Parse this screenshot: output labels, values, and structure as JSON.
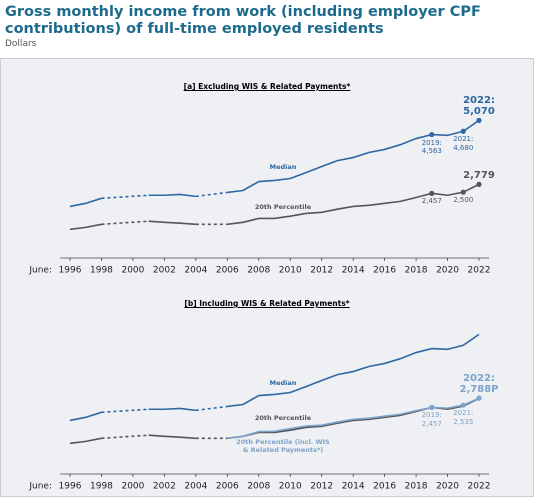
{
  "header": {
    "title": "Gross monthly income from work (including employer CPF contributions) of full-time employed residents",
    "subtitle": "Dollars"
  },
  "chart_data": [
    {
      "type": "line",
      "title": "[a] Excluding WIS & Related Payments*",
      "x_prefix": "June:",
      "x": [
        1996,
        1997,
        1998,
        2001,
        2002,
        2003,
        2004,
        2006,
        2007,
        2008,
        2009,
        2010,
        2011,
        2012,
        2013,
        2014,
        2015,
        2016,
        2017,
        2018,
        2019,
        2020,
        2021,
        2022
      ],
      "xlim": [
        1996,
        2022
      ],
      "xticks": [
        1996,
        1998,
        2000,
        2002,
        2004,
        2006,
        2008,
        2010,
        2012,
        2014,
        2016,
        2018,
        2020,
        2022
      ],
      "ylim": [
        0,
        5800
      ],
      "series": [
        {
          "name": "Median",
          "color": "#2e67a3",
          "values": [
            1990,
            2100,
            2280,
            2390,
            2390,
            2420,
            2350,
            2490,
            2560,
            2880,
            2920,
            2990,
            3200,
            3420,
            3630,
            3740,
            3920,
            4030,
            4200,
            4420,
            4563,
            4534,
            4680,
            5070
          ],
          "value_labels": [
            null,
            null,
            null,
            null,
            null,
            null,
            null,
            null,
            null,
            null,
            null,
            null,
            null,
            null,
            null,
            null,
            null,
            null,
            null,
            null,
            "2019:\n4,563",
            null,
            "2021:\n4,680",
            "2022:\n5,070"
          ]
        },
        {
          "name": "20th Percentile",
          "color": "#555555",
          "values": [
            1170,
            1240,
            1350,
            1460,
            1420,
            1390,
            1350,
            1350,
            1420,
            1560,
            1560,
            1640,
            1740,
            1780,
            1890,
            1990,
            2030,
            2100,
            2170,
            2310,
            2457,
            2390,
            2500,
            2779
          ],
          "value_labels": [
            null,
            null,
            null,
            null,
            null,
            null,
            null,
            null,
            null,
            null,
            null,
            null,
            null,
            null,
            null,
            null,
            null,
            null,
            null,
            null,
            "2,457",
            null,
            "2,500",
            "2,779"
          ]
        }
      ]
    },
    {
      "type": "line",
      "title": "[b] Including WIS & Related Payments*",
      "x_prefix": "June:",
      "x": [
        1996,
        1997,
        1998,
        2001,
        2002,
        2003,
        2004,
        2006,
        2007,
        2008,
        2009,
        2010,
        2011,
        2012,
        2013,
        2014,
        2015,
        2016,
        2017,
        2018,
        2019,
        2020,
        2021,
        2022
      ],
      "xlim": [
        1996,
        2022
      ],
      "xticks": [
        1996,
        1998,
        2000,
        2002,
        2004,
        2006,
        2008,
        2010,
        2012,
        2014,
        2016,
        2018,
        2020,
        2022
      ],
      "ylim": [
        0,
        5800
      ],
      "series": [
        {
          "name": "Median",
          "color": "#2e67a3",
          "values": [
            1990,
            2100,
            2280,
            2390,
            2390,
            2420,
            2350,
            2490,
            2560,
            2880,
            2920,
            2990,
            3200,
            3420,
            3630,
            3740,
            3920,
            4030,
            4200,
            4420,
            4563,
            4534,
            4680,
            5070
          ]
        },
        {
          "name": "20th Percentile",
          "color": "#555555",
          "values": [
            1170,
            1240,
            1350,
            1460,
            1420,
            1390,
            1350,
            1350,
            1420,
            1560,
            1560,
            1640,
            1740,
            1780,
            1890,
            1990,
            2030,
            2100,
            2170,
            2310,
            2457,
            2390,
            2500,
            2779
          ]
        },
        {
          "name": "20th Percentile (incl. WIS\n& Related Payments*)",
          "color": "#7da3cc",
          "x": [
            2006,
            2007,
            2008,
            2009,
            2010,
            2011,
            2012,
            2013,
            2014,
            2015,
            2016,
            2017,
            2018,
            2019,
            2020,
            2021,
            2022
          ],
          "values": [
            1350,
            1420,
            1590,
            1600,
            1700,
            1790,
            1820,
            1930,
            2030,
            2070,
            2140,
            2210,
            2340,
            2457,
            2430,
            2535,
            2788
          ],
          "value_labels": [
            null,
            null,
            null,
            null,
            null,
            null,
            null,
            null,
            null,
            null,
            null,
            null,
            null,
            "2019:\n2,457",
            null,
            "2021:\n2,535",
            "2022:\n2,788P"
          ]
        }
      ]
    }
  ]
}
